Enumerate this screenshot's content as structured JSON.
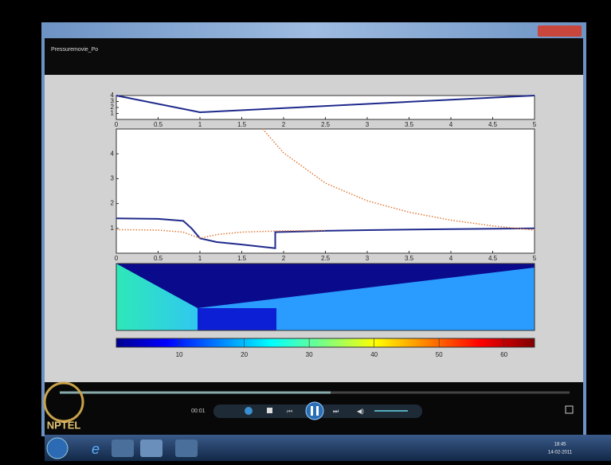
{
  "window": {
    "title": "Pressuremovie_Po"
  },
  "plots": [
    {
      "xlim": [
        0,
        5
      ],
      "ylim": [
        0,
        4
      ],
      "xticks": [
        0,
        0.5,
        1,
        1.5,
        2,
        2.5,
        3,
        3.5,
        4,
        4.5,
        5
      ],
      "yticks": [
        1,
        2,
        3,
        4
      ],
      "series": [
        {
          "color": "#1f2a8c",
          "style": "solid",
          "x": [
            0,
            1,
            5
          ],
          "values": [
            4,
            1.2,
            4
          ]
        }
      ]
    },
    {
      "xlim": [
        0,
        5
      ],
      "ylim": [
        0,
        5
      ],
      "xticks": [
        0,
        0.5,
        1,
        1.5,
        2,
        2.5,
        3,
        3.5,
        4,
        4.5,
        5
      ],
      "yticks": [
        1,
        2,
        3,
        4
      ],
      "series": [
        {
          "color": "#1f2a8c",
          "style": "solid",
          "x": [
            0,
            0.5,
            0.8,
            0.9,
            1,
            1.2,
            1.5,
            1.9,
            1.9,
            2.5,
            3,
            4,
            5
          ],
          "values": [
            1.4,
            1.38,
            1.3,
            1.0,
            0.6,
            0.45,
            0.35,
            0.2,
            0.85,
            0.9,
            0.93,
            0.97,
            1.0
          ]
        },
        {
          "color": "#e07b39",
          "style": "dotted",
          "x": [
            0,
            0.5,
            0.8,
            1,
            1.2,
            1.5,
            2,
            2.5
          ],
          "values": [
            0.95,
            0.93,
            0.85,
            0.6,
            0.75,
            0.85,
            0.9,
            0.92
          ]
        },
        {
          "color": "#e07b39",
          "style": "dotted",
          "x": [
            1.75,
            2,
            2.5,
            3,
            3.5,
            4,
            4.5,
            5
          ],
          "values": [
            5,
            4.04,
            2.82,
            2.11,
            1.65,
            1.33,
            1.1,
            0.93
          ]
        }
      ]
    }
  ],
  "colorbar": {
    "clim": [
      0.3,
      64.7
    ],
    "ticks": [
      10,
      20,
      30,
      40,
      50,
      60
    ]
  },
  "player": {
    "time": "00:01"
  },
  "taskbar": {
    "time": "18:45",
    "date": "14-02-2011"
  },
  "logo": {
    "text": "NPTEL"
  }
}
